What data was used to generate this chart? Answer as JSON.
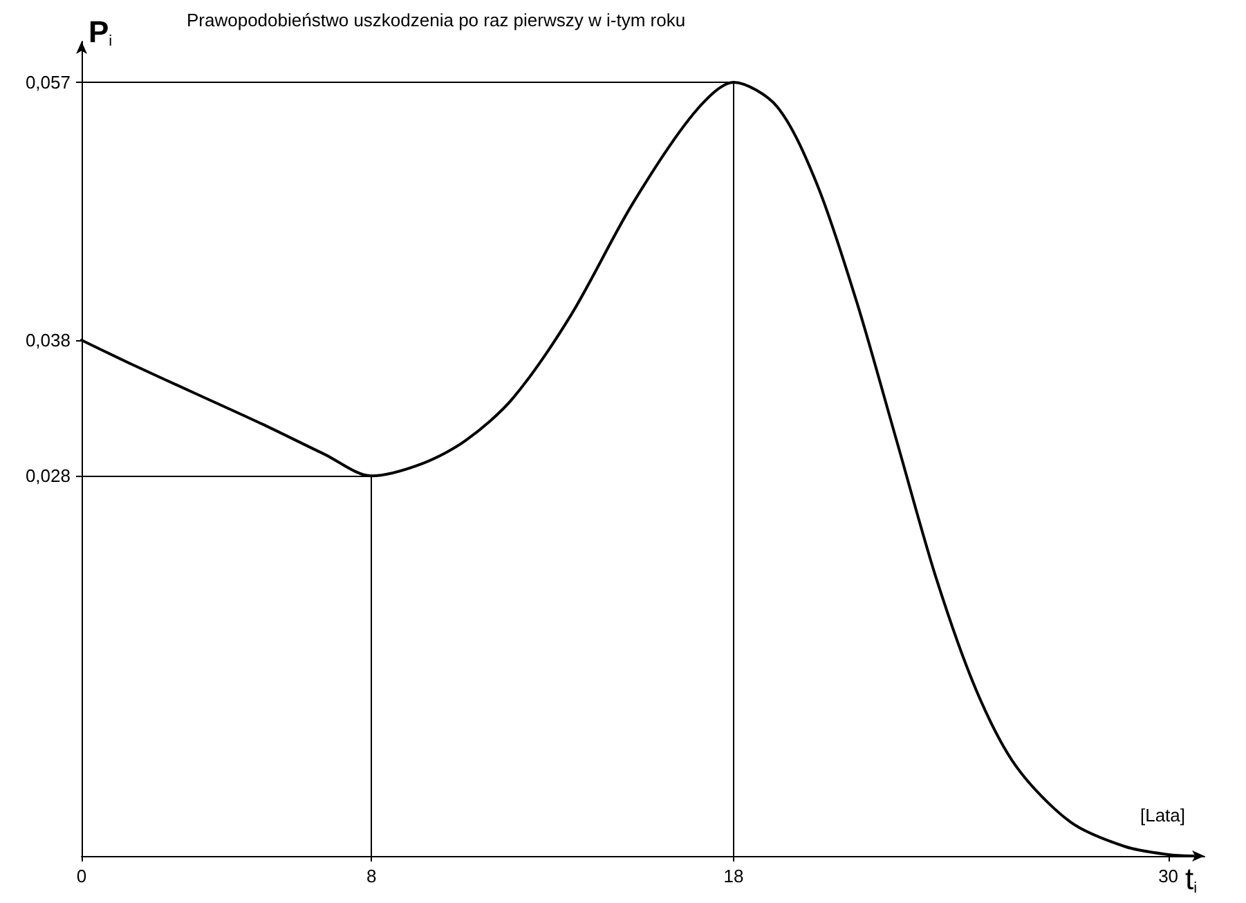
{
  "chart_data": {
    "type": "line",
    "title": "Prawopodobieństwo uszkodzenia po raz pierwszy w i-tym roku",
    "xlabel": "[Lata]",
    "ylabel": "P$_{i}$",
    "annotations": [
      {
        "text": "t$_{i}$",
        "x": 31,
        "y": 0
      }
    ],
    "x": [
      0,
      1.4,
      3.2,
      5,
      6.7,
      8,
      9.4,
      10.6,
      11.9,
      13.5,
      15.2,
      16.9,
      18,
      19.2,
      20.3,
      21.4,
      22.5,
      23.6,
      24.7,
      25.8,
      27.3,
      28.8,
      30,
      30.7
    ],
    "series": [
      {
        "color": "#000000",
        "values": [
          0.038,
          0.0362,
          0.034,
          0.0318,
          0.0296,
          0.028,
          0.0289,
          0.0306,
          0.0337,
          0.0398,
          0.048,
          0.0547,
          0.057,
          0.0552,
          0.0495,
          0.0408,
          0.0306,
          0.0204,
          0.0122,
          0.0066,
          0.0025,
          0.0007,
          0.0001,
          0
        ]
      }
    ],
    "xlim": [
      0,
      31
    ],
    "ylim": [
      0,
      0.06
    ],
    "xticks": [
      0,
      8,
      18,
      30
    ],
    "yticks": [
      {
        "value": 0.028,
        "label": "0,028"
      },
      {
        "value": 0.038,
        "label": "0,038"
      },
      {
        "value": 0.057,
        "label": "0,057"
      }
    ],
    "ref_lines": [
      {
        "axis": "x",
        "value": 8,
        "label": null,
        "color": "#000000"
      },
      {
        "axis": "y",
        "value": 0.028,
        "label": null,
        "color": "#000000"
      },
      {
        "axis": "x",
        "value": 18,
        "label": null,
        "color": "#000000"
      },
      {
        "axis": "y",
        "value": 0.057,
        "label": null,
        "color": "#000000"
      }
    ],
    "grid": false,
    "marker": "none",
    "line_style": "solid"
  }
}
